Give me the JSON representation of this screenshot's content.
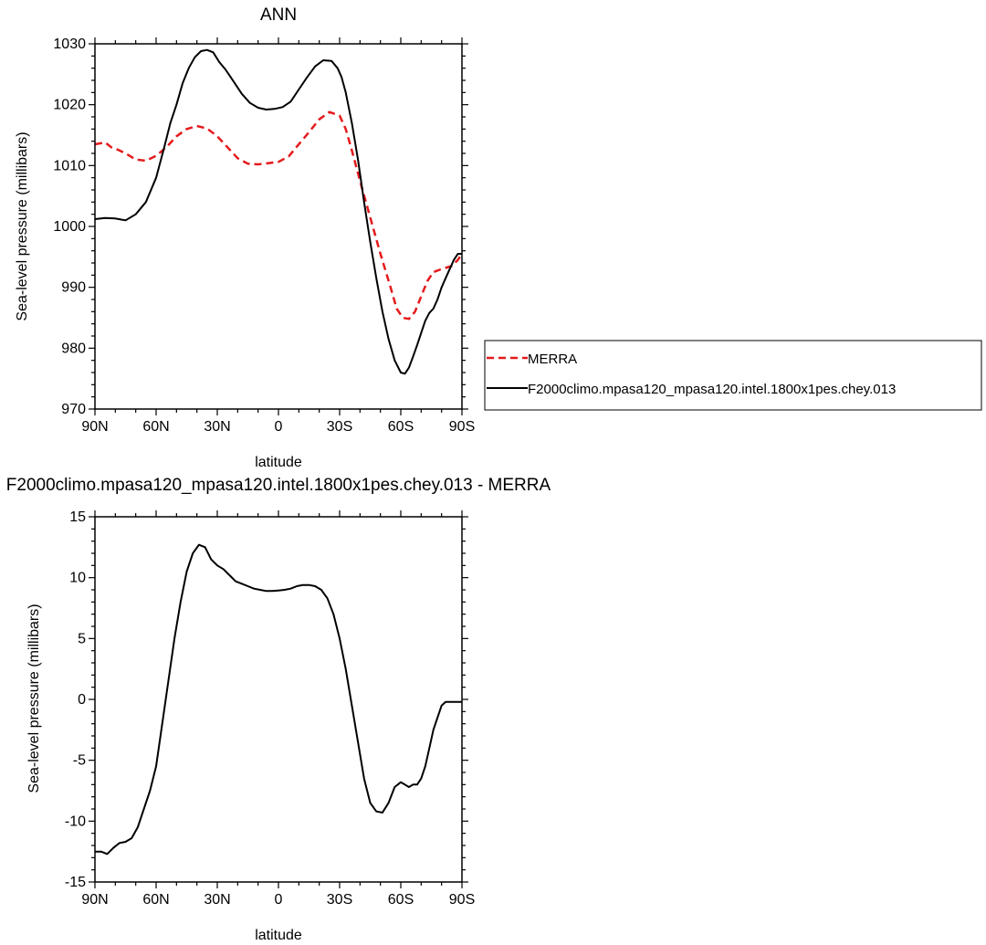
{
  "chart_data": [
    {
      "type": "line",
      "title": "ANN",
      "xlabel": "latitude",
      "ylabel": "Sea-level pressure (millibars)",
      "xlim": [
        90,
        -90
      ],
      "ylim": [
        970,
        1030
      ],
      "xticks": [
        90,
        60,
        30,
        0,
        -30,
        -60,
        -90
      ],
      "xtick_labels": [
        "90N",
        "60N",
        "30N",
        "0",
        "30S",
        "60S",
        "90S"
      ],
      "yticks": [
        970,
        980,
        990,
        1000,
        1010,
        1020,
        1030
      ],
      "ytick_labels": [
        "970",
        "980",
        "990",
        "1000",
        "1010",
        "1020",
        "1030"
      ],
      "grid": false,
      "legend": {
        "placement": "right"
      },
      "series": [
        {
          "name": "MERRA",
          "color": "#e41a1c",
          "dash": "dashed",
          "x": [
            90,
            85,
            82,
            78,
            75,
            70,
            65,
            60,
            55,
            50,
            45,
            40,
            35,
            30,
            25,
            20,
            15,
            10,
            5,
            0,
            -5,
            -10,
            -15,
            -20,
            -25,
            -30,
            -33,
            -36,
            -40,
            -45,
            -50,
            -55,
            -58,
            -61,
            -64,
            -67,
            -70,
            -73,
            -76,
            -80,
            -85,
            -88,
            -90
          ],
          "y": [
            1013.5,
            1013.8,
            1013.0,
            1012.5,
            1012.0,
            1011.0,
            1010.8,
            1011.6,
            1013.0,
            1014.8,
            1016.0,
            1016.5,
            1016.1,
            1014.8,
            1013.0,
            1011.2,
            1010.3,
            1010.2,
            1010.4,
            1010.6,
            1011.5,
            1013.5,
            1015.5,
            1017.6,
            1018.8,
            1018.2,
            1016.0,
            1012.5,
            1007.5,
            1001.5,
            995.5,
            990.0,
            986.5,
            985.0,
            984.8,
            986.0,
            988.5,
            991.0,
            992.5,
            993.0,
            993.5,
            994.5,
            995.5
          ]
        },
        {
          "name": "F2000climo.mpasa120_mpasa120.intel.1800x1pes.chey.013",
          "color": "#000000",
          "dash": "solid",
          "x": [
            90,
            85,
            80,
            75,
            70,
            65,
            60,
            56,
            53,
            50,
            47,
            44,
            41,
            38,
            35,
            32,
            29,
            26,
            22,
            18,
            14,
            10,
            6,
            2,
            -2,
            -6,
            -10,
            -14,
            -18,
            -22,
            -26,
            -29,
            -31,
            -33,
            -36,
            -39,
            -42,
            -45,
            -48,
            -51,
            -54,
            -57,
            -60,
            -62,
            -64,
            -66,
            -68,
            -70,
            -72,
            -74,
            -76,
            -78,
            -80,
            -82,
            -84,
            -86,
            -88,
            -90
          ],
          "y": [
            1001.2,
            1001.4,
            1001.3,
            1001.0,
            1002.0,
            1004.0,
            1008.0,
            1013.0,
            1017.0,
            1020.0,
            1023.5,
            1026.0,
            1027.8,
            1028.8,
            1029.0,
            1028.6,
            1027.0,
            1025.8,
            1023.8,
            1021.8,
            1020.3,
            1019.5,
            1019.2,
            1019.3,
            1019.6,
            1020.5,
            1022.5,
            1024.5,
            1026.3,
            1027.3,
            1027.2,
            1026.0,
            1024.5,
            1022.0,
            1017.0,
            1011.0,
            1004.0,
            997.5,
            991.5,
            986.0,
            981.5,
            978.0,
            976.0,
            975.8,
            976.8,
            978.6,
            980.5,
            982.5,
            984.5,
            985.8,
            986.5,
            988.0,
            990.0,
            991.5,
            993.0,
            994.5,
            995.5,
            995.5
          ]
        }
      ]
    },
    {
      "type": "line",
      "title": "F2000climo.mpasa120_mpasa120.intel.1800x1pes.chey.013 - MERRA",
      "xlabel": "latitude",
      "ylabel": "Sea-level pressure (millibars)",
      "xlim": [
        90,
        -90
      ],
      "ylim": [
        -15,
        15
      ],
      "xticks": [
        90,
        60,
        30,
        0,
        -30,
        -60,
        -90
      ],
      "xtick_labels": [
        "90N",
        "60N",
        "30N",
        "0",
        "30S",
        "60S",
        "90S"
      ],
      "yticks": [
        -15,
        -10,
        -5,
        0,
        5,
        10,
        15
      ],
      "ytick_labels": [
        "-15",
        "-10",
        "-5",
        "0",
        "5",
        "10",
        "15"
      ],
      "grid": false,
      "series": [
        {
          "color": "#000000",
          "dash": "solid",
          "x": [
            90,
            87,
            84,
            81,
            78,
            75,
            72,
            69,
            66,
            63,
            60,
            57,
            54,
            51,
            48,
            45,
            42,
            39,
            36,
            33,
            30,
            27,
            24,
            21,
            18,
            15,
            12,
            9,
            6,
            3,
            0,
            -3,
            -6,
            -9,
            -12,
            -15,
            -18,
            -21,
            -24,
            -27,
            -30,
            -33,
            -36,
            -39,
            -42,
            -45,
            -48,
            -51,
            -54,
            -57,
            -60,
            -62,
            -64,
            -66,
            -68,
            -70,
            -72,
            -74,
            -76,
            -78,
            -80,
            -82,
            -84,
            -86,
            -88,
            -90
          ],
          "y": [
            -12.5,
            -12.5,
            -12.7,
            -12.2,
            -11.8,
            -11.7,
            -11.4,
            -10.5,
            -9.0,
            -7.5,
            -5.5,
            -2.0,
            1.5,
            5.0,
            8.0,
            10.5,
            12.0,
            12.7,
            12.5,
            11.5,
            11.0,
            10.7,
            10.2,
            9.7,
            9.5,
            9.3,
            9.1,
            9.0,
            8.9,
            8.9,
            8.95,
            9.0,
            9.1,
            9.3,
            9.4,
            9.4,
            9.3,
            9.0,
            8.3,
            7.0,
            5.0,
            2.5,
            -0.5,
            -3.5,
            -6.5,
            -8.5,
            -9.2,
            -9.3,
            -8.5,
            -7.2,
            -6.8,
            -7.0,
            -7.2,
            -7.0,
            -7.0,
            -6.5,
            -5.5,
            -4.0,
            -2.5,
            -1.5,
            -0.5,
            -0.2,
            -0.2,
            -0.2,
            -0.2,
            -0.2
          ]
        }
      ]
    }
  ]
}
